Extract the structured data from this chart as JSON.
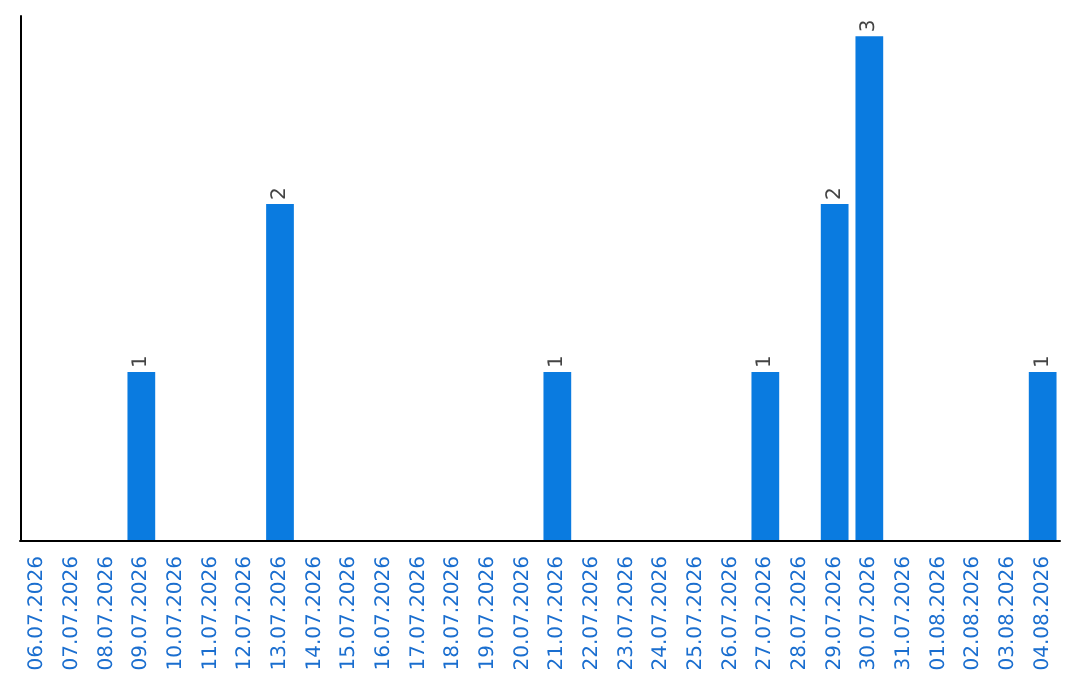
{
  "chart_data": {
    "type": "bar",
    "categories": [
      "06.07.2026",
      "07.07.2026",
      "08.07.2026",
      "09.07.2026",
      "10.07.2026",
      "11.07.2026",
      "12.07.2026",
      "13.07.2026",
      "14.07.2026",
      "15.07.2026",
      "16.07.2026",
      "17.07.2026",
      "18.07.2026",
      "19.07.2026",
      "20.07.2026",
      "21.07.2026",
      "22.07.2026",
      "23.07.2026",
      "24.07.2026",
      "25.07.2026",
      "26.07.2026",
      "27.07.2026",
      "28.07.2026",
      "29.07.2026",
      "30.07.2026",
      "31.07.2026",
      "01.08.2026",
      "02.08.2026",
      "03.08.2026",
      "04.08.2026"
    ],
    "values": [
      0,
      0,
      0,
      1,
      0,
      0,
      0,
      2,
      0,
      0,
      0,
      0,
      0,
      0,
      0,
      1,
      0,
      0,
      0,
      0,
      0,
      1,
      0,
      2,
      3,
      0,
      0,
      0,
      0,
      1
    ],
    "value_labels": [
      null,
      null,
      null,
      "1",
      null,
      null,
      null,
      "2",
      null,
      null,
      null,
      null,
      null,
      null,
      null,
      "1",
      null,
      null,
      null,
      null,
      null,
      "1",
      null,
      "2",
      "3",
      null,
      null,
      null,
      null,
      "1"
    ],
    "color": "#0a7be0",
    "grid": false,
    "tick_labels": "x"
  }
}
